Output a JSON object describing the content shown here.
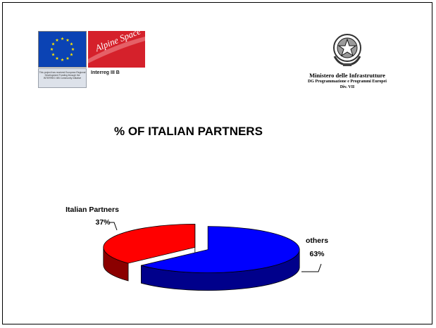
{
  "logos": {
    "eu_caption": "This project has received European Regional Development Funding through the INTERREG IIIB Community Initiative",
    "alpine_space": "Alpine Space",
    "interreg": "Interreg III B",
    "eu_flag_color": "#0b43b4",
    "alpine_badge_color": "#d5212b"
  },
  "ministry": {
    "name": "Ministero delle Infrastrutture",
    "department": "DG Programmazione e Programmi Europei",
    "division": "Div. VII",
    "emblem_icon": "italian-republic-emblem-icon"
  },
  "chart_data": {
    "type": "pie",
    "title": "% OF ITALIAN PARTNERS",
    "three_d": true,
    "exploded": true,
    "slices": [
      {
        "label": "Italian Partners",
        "value": 37,
        "display": "37%",
        "color": "#ff0000",
        "side_color": "#8b0000"
      },
      {
        "label": "others",
        "value": 63,
        "display": "63%",
        "color": "#0000ff",
        "side_color": "#00008b"
      }
    ]
  }
}
